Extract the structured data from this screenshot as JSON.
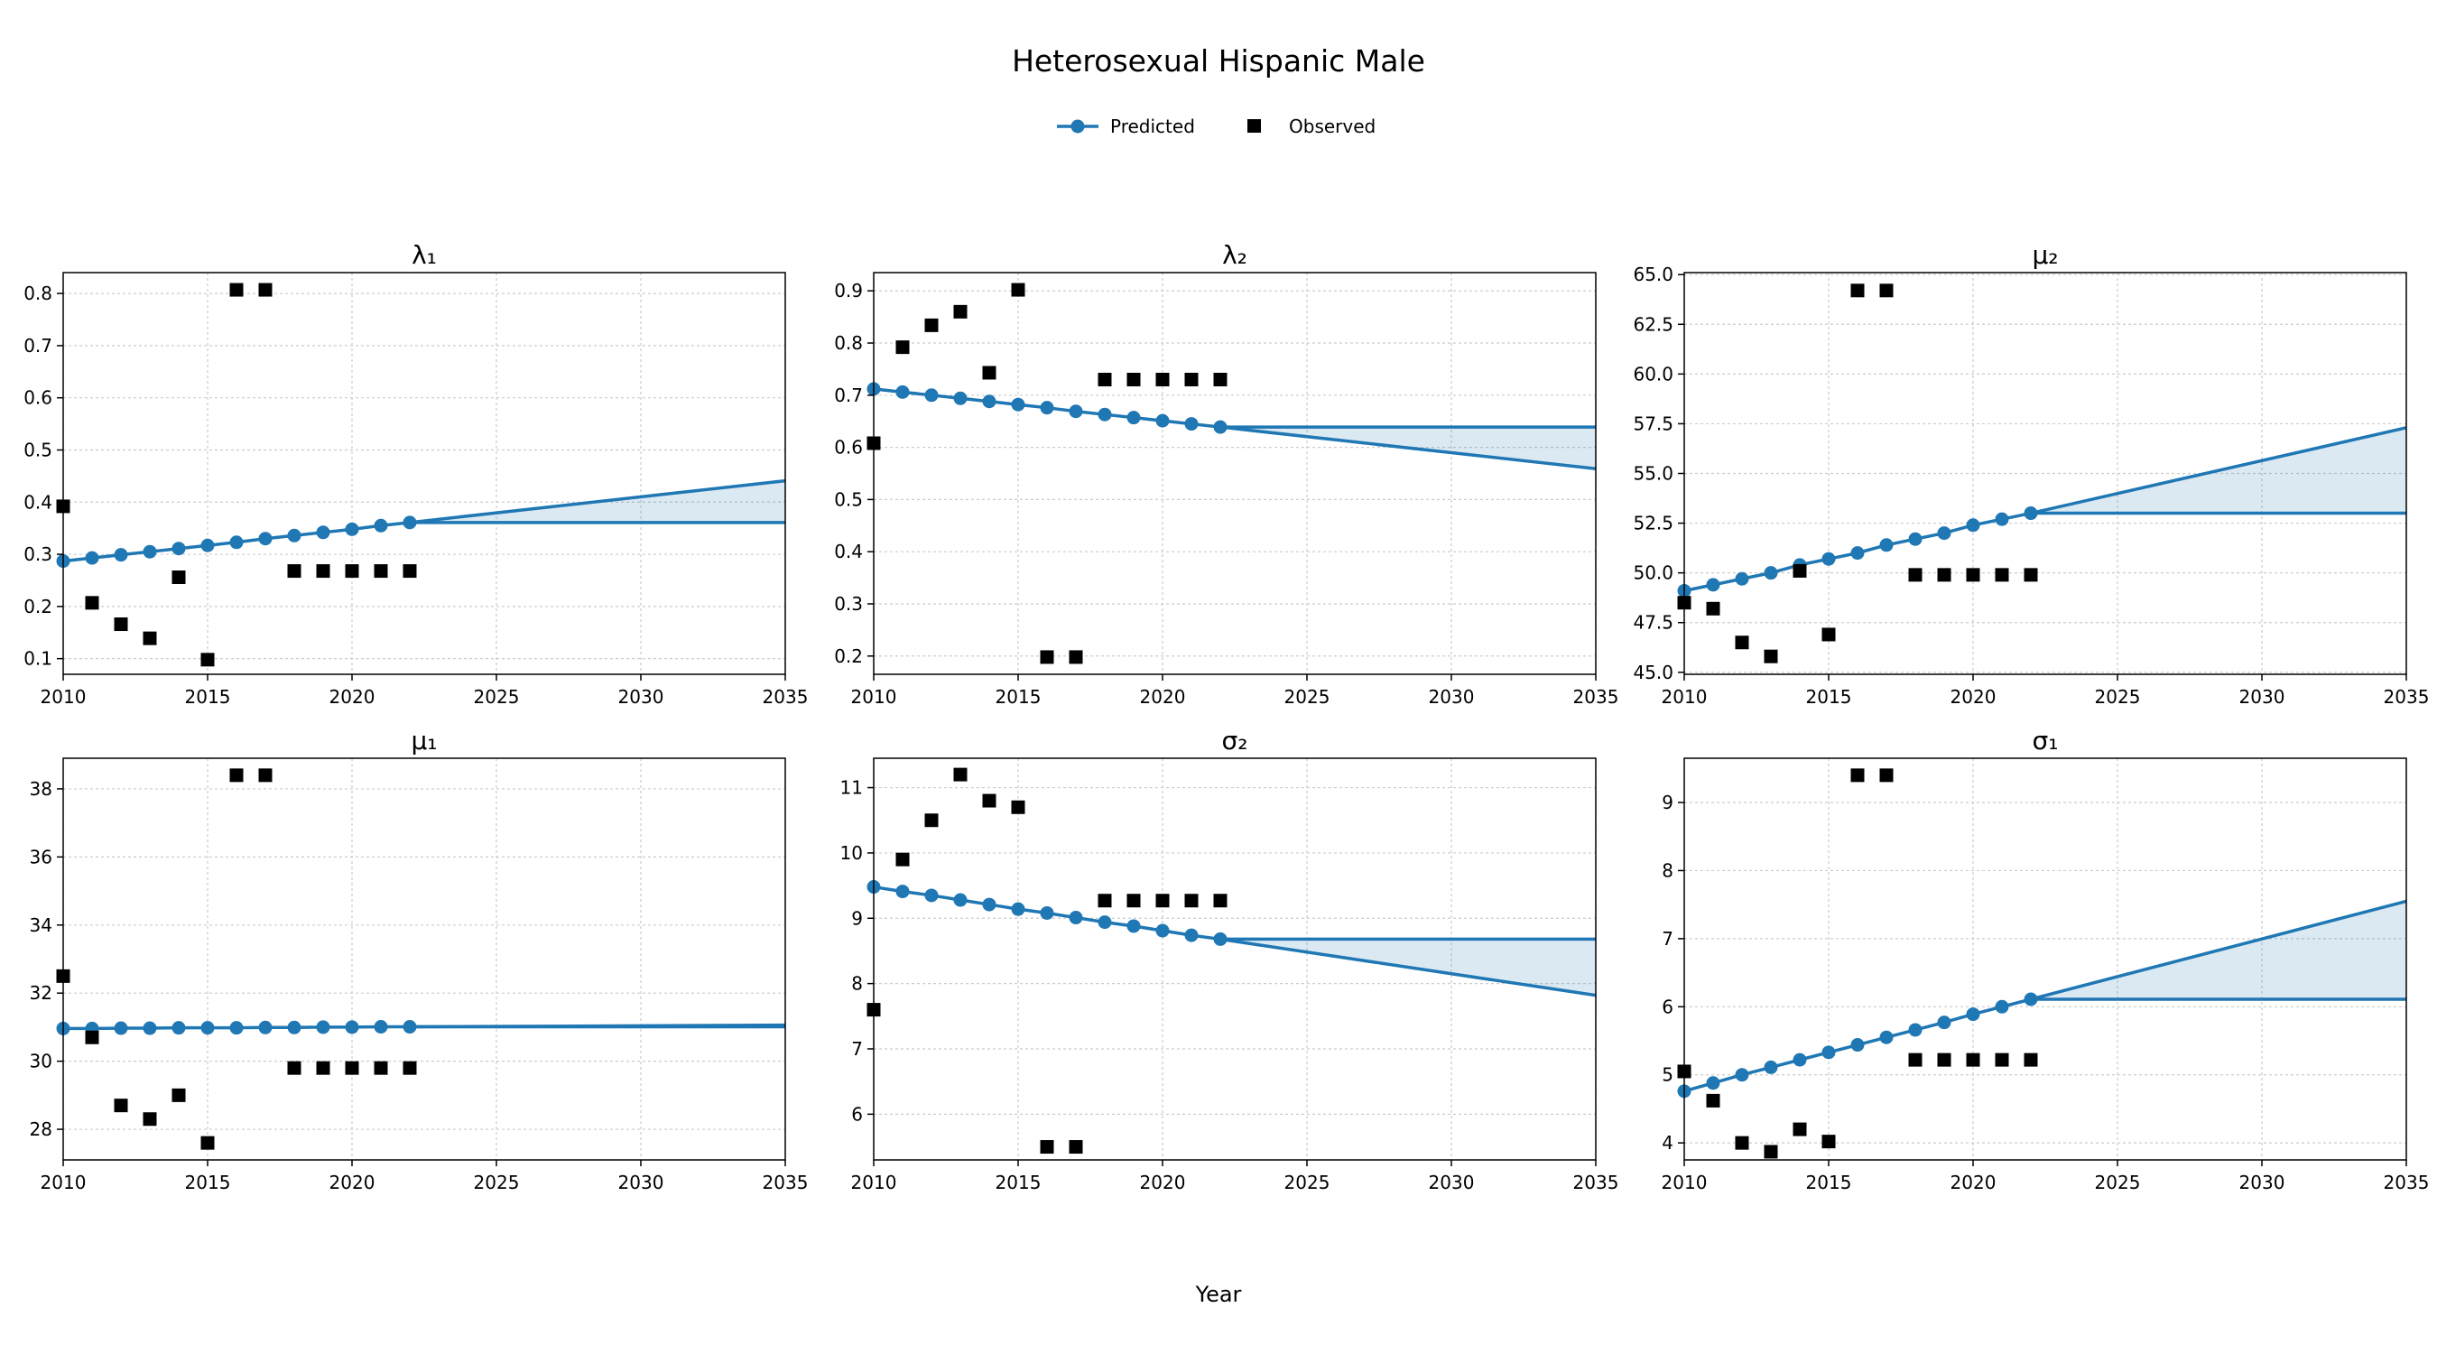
{
  "figure": {
    "title": "Heterosexual Hispanic Male",
    "xlabel": "Year",
    "legend": {
      "position": "top-center",
      "items": [
        {
          "label": "Predicted",
          "marker": "circle-line"
        },
        {
          "label": "Observed",
          "marker": "square"
        }
      ]
    },
    "colors": {
      "predicted": "#1f77b4",
      "band": "#1f77b4",
      "observed": "#000000",
      "grid": "#cccccc"
    }
  },
  "chart_data": [
    {
      "type": "line",
      "title": "λ₁",
      "xlim": [
        2010,
        2035
      ],
      "ylim": [
        0.07,
        0.84
      ],
      "xticks": [
        2010,
        2015,
        2020,
        2025,
        2030,
        2035
      ],
      "yticks": [
        0.1,
        0.2,
        0.3,
        0.4,
        0.5,
        0.6,
        0.7,
        0.8
      ],
      "grid": true,
      "series": [
        {
          "name": "Predicted",
          "x": [
            2010,
            2011,
            2012,
            2013,
            2014,
            2015,
            2016,
            2017,
            2018,
            2019,
            2020,
            2021,
            2022
          ],
          "y": [
            0.287,
            0.293,
            0.299,
            0.305,
            0.311,
            0.317,
            0.323,
            0.33,
            0.336,
            0.342,
            0.348,
            0.355,
            0.361
          ]
        },
        {
          "name": "Observed",
          "x": [
            2010,
            2011,
            2012,
            2013,
            2014,
            2015,
            2016,
            2017,
            2018,
            2019,
            2020,
            2021,
            2022
          ],
          "y": [
            0.392,
            0.207,
            0.166,
            0.139,
            0.256,
            0.098,
            0.807,
            0.807,
            0.268,
            0.268,
            0.268,
            0.268,
            0.268
          ]
        }
      ],
      "projection": {
        "x": [
          2022,
          2035
        ],
        "flat": [
          0.361,
          0.361
        ],
        "trend": [
          0.361,
          0.441
        ]
      }
    },
    {
      "type": "line",
      "title": "λ₂",
      "xlim": [
        2010,
        2035
      ],
      "ylim": [
        0.165,
        0.935
      ],
      "xticks": [
        2010,
        2015,
        2020,
        2025,
        2030,
        2035
      ],
      "yticks": [
        0.2,
        0.3,
        0.4,
        0.5,
        0.6,
        0.7,
        0.8,
        0.9
      ],
      "grid": true,
      "series": [
        {
          "name": "Predicted",
          "x": [
            2010,
            2011,
            2012,
            2013,
            2014,
            2015,
            2016,
            2017,
            2018,
            2019,
            2020,
            2021,
            2022
          ],
          "y": [
            0.712,
            0.706,
            0.7,
            0.694,
            0.688,
            0.682,
            0.676,
            0.669,
            0.663,
            0.657,
            0.651,
            0.645,
            0.639
          ]
        },
        {
          "name": "Observed",
          "x": [
            2010,
            2011,
            2012,
            2013,
            2014,
            2015,
            2016,
            2017,
            2018,
            2019,
            2020,
            2021,
            2022
          ],
          "y": [
            0.608,
            0.792,
            0.834,
            0.86,
            0.743,
            0.902,
            0.198,
            0.198,
            0.73,
            0.73,
            0.73,
            0.73,
            0.73
          ]
        }
      ],
      "projection": {
        "x": [
          2022,
          2035
        ],
        "flat": [
          0.639,
          0.639
        ],
        "trend": [
          0.639,
          0.559
        ]
      }
    },
    {
      "type": "line",
      "title": "μ₂",
      "xlim": [
        2010,
        2035
      ],
      "ylim": [
        44.9,
        65.1
      ],
      "xticks": [
        2010,
        2015,
        2020,
        2025,
        2030,
        2035
      ],
      "yticks": [
        45.0,
        47.5,
        50.0,
        52.5,
        55.0,
        57.5,
        60.0,
        62.5,
        65.0
      ],
      "ytick_labels": [
        "45.0",
        "47.5",
        "50.0",
        "52.5",
        "55.0",
        "57.5",
        "60.0",
        "62.5",
        "65.0"
      ],
      "grid": true,
      "series": [
        {
          "name": "Predicted",
          "x": [
            2010,
            2011,
            2012,
            2013,
            2014,
            2015,
            2016,
            2017,
            2018,
            2019,
            2020,
            2021,
            2022
          ],
          "y": [
            49.1,
            49.4,
            49.7,
            50.0,
            50.4,
            50.7,
            51.0,
            51.4,
            51.7,
            52.0,
            52.4,
            52.7,
            53.0
          ]
        },
        {
          "name": "Observed",
          "x": [
            2010,
            2011,
            2012,
            2013,
            2014,
            2015,
            2016,
            2017,
            2018,
            2019,
            2020,
            2021,
            2022
          ],
          "y": [
            48.5,
            48.2,
            46.5,
            45.8,
            50.1,
            46.9,
            64.2,
            64.2,
            49.9,
            49.9,
            49.9,
            49.9,
            49.9
          ]
        }
      ],
      "projection": {
        "x": [
          2022,
          2035
        ],
        "flat": [
          53.0,
          53.0
        ],
        "trend": [
          53.0,
          57.3
        ]
      }
    },
    {
      "type": "line",
      "title": "μ₁",
      "xlim": [
        2010,
        2035
      ],
      "ylim": [
        27.1,
        38.9
      ],
      "xticks": [
        2010,
        2015,
        2020,
        2025,
        2030,
        2035
      ],
      "yticks": [
        28,
        30,
        32,
        34,
        36,
        38
      ],
      "grid": true,
      "series": [
        {
          "name": "Predicted",
          "x": [
            2010,
            2011,
            2012,
            2013,
            2014,
            2015,
            2016,
            2017,
            2018,
            2019,
            2020,
            2021,
            2022
          ],
          "y": [
            30.96,
            30.96,
            30.97,
            30.97,
            30.98,
            30.98,
            30.98,
            30.99,
            30.99,
            31.0,
            31.0,
            31.01,
            31.01
          ]
        },
        {
          "name": "Observed",
          "x": [
            2010,
            2011,
            2012,
            2013,
            2014,
            2015,
            2016,
            2017,
            2018,
            2019,
            2020,
            2021,
            2022
          ],
          "y": [
            32.5,
            30.7,
            28.7,
            28.3,
            29.0,
            27.6,
            38.4,
            38.4,
            29.8,
            29.8,
            29.8,
            29.8,
            29.8
          ]
        }
      ],
      "projection": {
        "x": [
          2022,
          2035
        ],
        "flat": [
          31.01,
          31.01
        ],
        "trend": [
          31.01,
          31.06
        ]
      }
    },
    {
      "type": "line",
      "title": "σ₂",
      "xlim": [
        2010,
        2035
      ],
      "ylim": [
        5.3,
        11.45
      ],
      "xticks": [
        2010,
        2015,
        2020,
        2025,
        2030,
        2035
      ],
      "yticks": [
        6,
        7,
        8,
        9,
        10,
        11
      ],
      "grid": true,
      "series": [
        {
          "name": "Predicted",
          "x": [
            2010,
            2011,
            2012,
            2013,
            2014,
            2015,
            2016,
            2017,
            2018,
            2019,
            2020,
            2021,
            2022
          ],
          "y": [
            9.48,
            9.41,
            9.35,
            9.28,
            9.21,
            9.14,
            9.08,
            9.01,
            8.94,
            8.88,
            8.81,
            8.74,
            8.68
          ]
        },
        {
          "name": "Observed",
          "x": [
            2010,
            2011,
            2012,
            2013,
            2014,
            2015,
            2016,
            2017,
            2018,
            2019,
            2020,
            2021,
            2022
          ],
          "y": [
            7.6,
            9.9,
            10.5,
            11.2,
            10.8,
            10.7,
            5.5,
            5.5,
            9.27,
            9.27,
            9.27,
            9.27,
            9.27
          ]
        }
      ],
      "projection": {
        "x": [
          2022,
          2035
        ],
        "flat": [
          8.68,
          8.68
        ],
        "trend": [
          8.68,
          7.82
        ]
      }
    },
    {
      "type": "line",
      "title": "σ₁",
      "xlim": [
        2010,
        2035
      ],
      "ylim": [
        3.75,
        9.65
      ],
      "xticks": [
        2010,
        2015,
        2020,
        2025,
        2030,
        2035
      ],
      "yticks": [
        4,
        5,
        6,
        7,
        8,
        9
      ],
      "grid": true,
      "series": [
        {
          "name": "Predicted",
          "x": [
            2010,
            2011,
            2012,
            2013,
            2014,
            2015,
            2016,
            2017,
            2018,
            2019,
            2020,
            2021,
            2022
          ],
          "y": [
            4.76,
            4.88,
            5.0,
            5.11,
            5.22,
            5.33,
            5.44,
            5.55,
            5.66,
            5.77,
            5.89,
            6.0,
            6.11
          ]
        },
        {
          "name": "Observed",
          "x": [
            2010,
            2011,
            2012,
            2013,
            2014,
            2015,
            2016,
            2017,
            2018,
            2019,
            2020,
            2021,
            2022
          ],
          "y": [
            5.05,
            4.62,
            4.0,
            3.87,
            4.2,
            4.02,
            9.4,
            9.4,
            5.22,
            5.22,
            5.22,
            5.22,
            5.22
          ]
        }
      ],
      "projection": {
        "x": [
          2022,
          2035
        ],
        "flat": [
          6.11,
          6.11
        ],
        "trend": [
          6.11,
          7.55
        ]
      }
    }
  ]
}
